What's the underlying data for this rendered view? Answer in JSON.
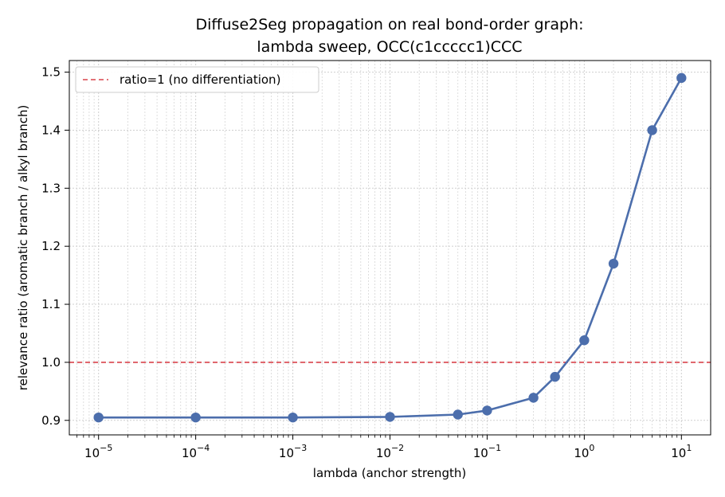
{
  "chart_data": {
    "type": "line",
    "title_lines": [
      "Diffuse2Seg propagation on real bond-order graph:",
      "lambda sweep, OCC(c1ccccc1)CCC"
    ],
    "xlabel": "lambda (anchor strength)",
    "ylabel": "relevance ratio (aromatic branch / alkyl branch)",
    "xscale": "log",
    "xlim": [
      5e-06,
      20
    ],
    "ylim": [
      0.875,
      1.52
    ],
    "x_ticks": [
      {
        "value": 1e-05,
        "base": "10",
        "exp": "−5"
      },
      {
        "value": 0.0001,
        "base": "10",
        "exp": "−4"
      },
      {
        "value": 0.001,
        "base": "10",
        "exp": "−3"
      },
      {
        "value": 0.01,
        "base": "10",
        "exp": "−2"
      },
      {
        "value": 0.1,
        "base": "10",
        "exp": "−1"
      },
      {
        "value": 1,
        "base": "10",
        "exp": "0"
      },
      {
        "value": 10,
        "base": "10",
        "exp": "1"
      }
    ],
    "y_ticks": [
      {
        "value": 0.9,
        "label": "0.9"
      },
      {
        "value": 1.0,
        "label": "1.0"
      },
      {
        "value": 1.1,
        "label": "1.1"
      },
      {
        "value": 1.2,
        "label": "1.2"
      },
      {
        "value": 1.3,
        "label": "1.3"
      },
      {
        "value": 1.4,
        "label": "1.4"
      },
      {
        "value": 1.5,
        "label": "1.5"
      }
    ],
    "grid": true,
    "grid_minor": true,
    "series": [
      {
        "color": "#4c6eac",
        "marker": "circle",
        "x": [
          1e-05,
          0.0001,
          0.001,
          0.01,
          0.05,
          0.1,
          0.3,
          0.5,
          1,
          2,
          5,
          10
        ],
        "y": [
          0.905,
          0.905,
          0.905,
          0.906,
          0.91,
          0.917,
          0.939,
          0.975,
          1.038,
          1.17,
          1.4,
          1.49
        ]
      }
    ],
    "reference_lines": [
      {
        "orientation": "horizontal",
        "y": 1.0,
        "color": "#d9434b",
        "style": "dashed",
        "label": "ratio=1 (no differentiation)"
      }
    ],
    "legend_position": "top-left"
  }
}
